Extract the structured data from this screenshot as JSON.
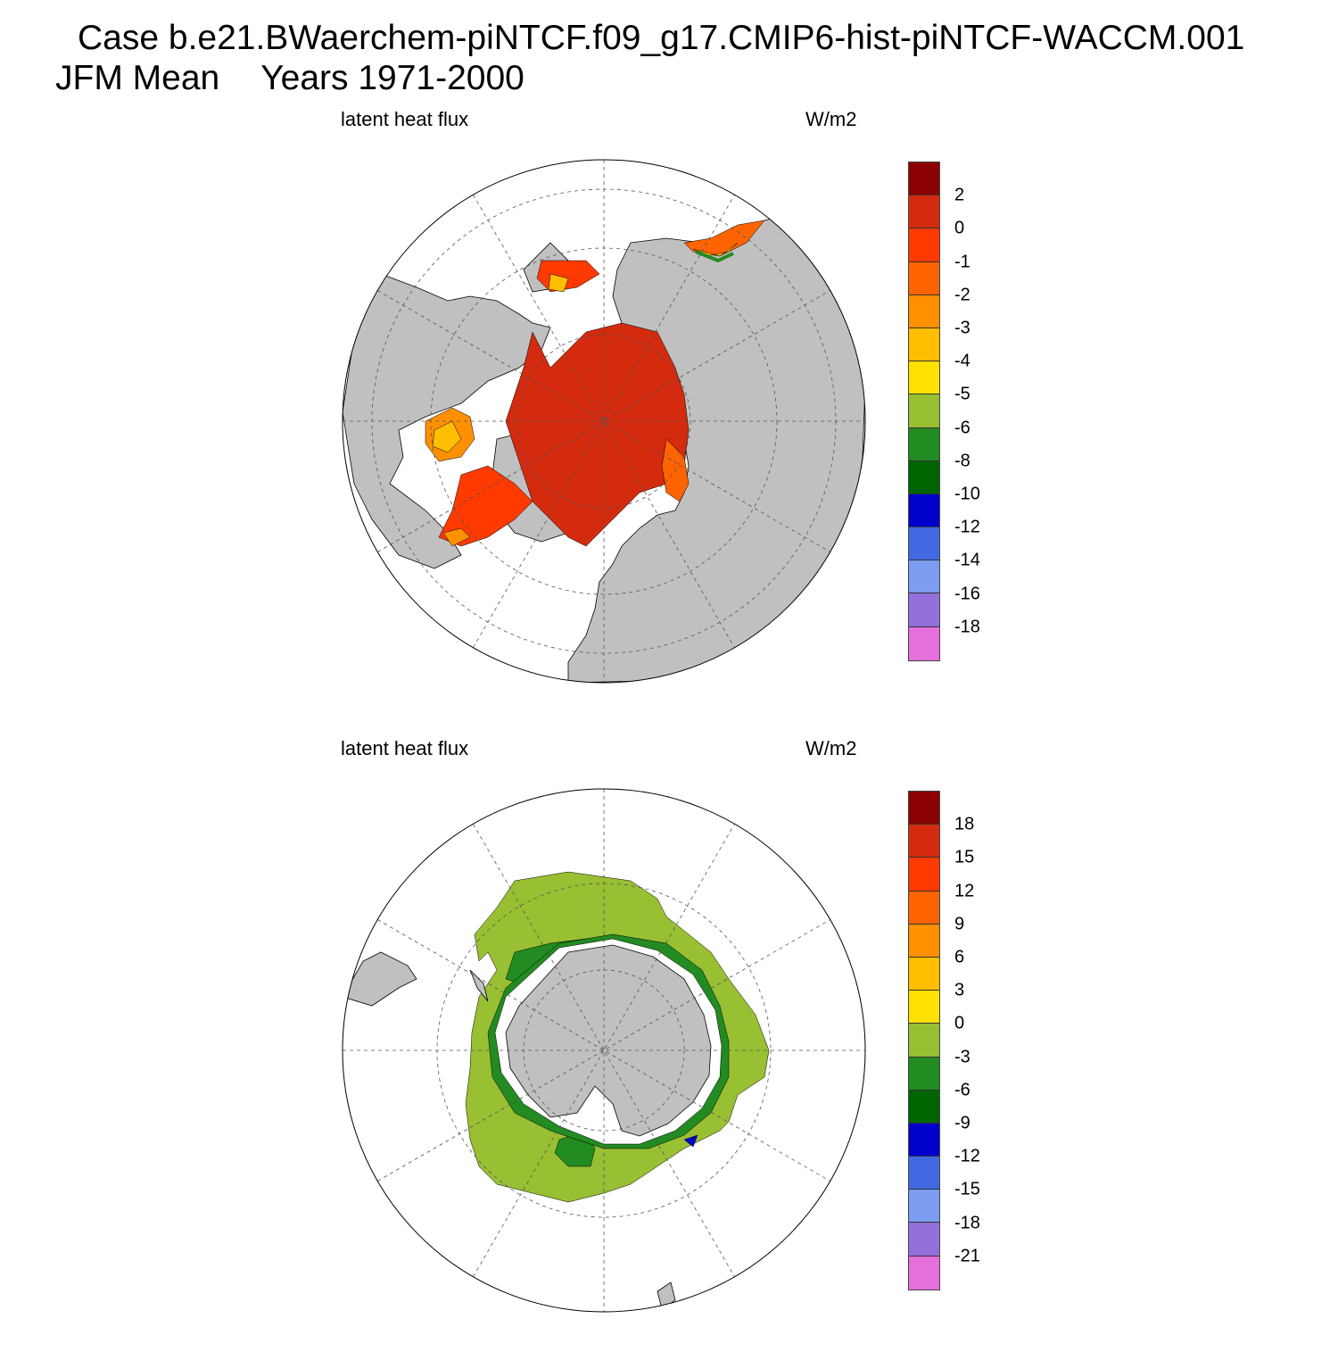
{
  "header": {
    "case_line": "Case b.e21.BWaerchem-piNTCF.f09_g17.CMIP6-hist-piNTCF-WACCM.001",
    "season": "JFM Mean",
    "years": "Years 1971-2000"
  },
  "panels": [
    {
      "hemisphere": "north",
      "left_label": "latent heat flux",
      "right_label": "W/m2",
      "colorbar": {
        "colors": [
          "#8b0000",
          "#d42a0e",
          "#ff3a00",
          "#ff6400",
          "#ff9000",
          "#ffbe00",
          "#ffe100",
          "#99bf33",
          "#228b22",
          "#006400",
          "#0000cd",
          "#4169e1",
          "#7b9cf0",
          "#9370db",
          "#e56fdb"
        ],
        "tick_labels": [
          "2",
          "0",
          "-1",
          "-2",
          "-3",
          "-4",
          "-5",
          "-6",
          "-8",
          "-10",
          "-12",
          "-14",
          "-16",
          "-18"
        ]
      }
    },
    {
      "hemisphere": "south",
      "left_label": "latent heat flux",
      "right_label": "W/m2",
      "colorbar": {
        "colors": [
          "#8b0000",
          "#d42a0e",
          "#ff3a00",
          "#ff6400",
          "#ff9000",
          "#ffbe00",
          "#ffe100",
          "#99bf33",
          "#228b22",
          "#006400",
          "#0000cd",
          "#4169e1",
          "#7b9cf0",
          "#9370db",
          "#e56fdb"
        ],
        "tick_labels": [
          "18",
          "15",
          "12",
          "9",
          "6",
          "3",
          "0",
          "-3",
          "-6",
          "-9",
          "-12",
          "-15",
          "-18",
          "-21"
        ]
      }
    }
  ],
  "map_colors": {
    "land": "#c0c0c0",
    "ocean_missing": "#ffffff",
    "grid": "#555555"
  }
}
